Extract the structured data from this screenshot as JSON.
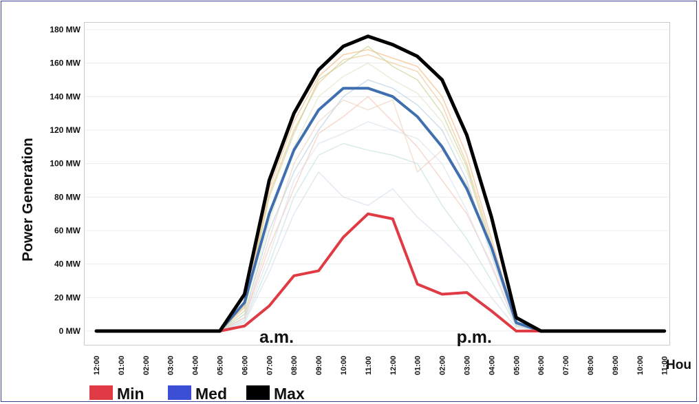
{
  "chart_data": {
    "type": "line",
    "title": "",
    "ylabel": "Power Generation",
    "xlabel": "Hou",
    "ylim": [
      0,
      180
    ],
    "y_ticks": [
      {
        "value": 0,
        "label": "0 MW"
      },
      {
        "value": 20,
        "label": "20 MW"
      },
      {
        "value": 40,
        "label": "40 MW"
      },
      {
        "value": 60,
        "label": "60 MW"
      },
      {
        "value": 80,
        "label": "80 MW"
      },
      {
        "value": 100,
        "label": "100 MW"
      },
      {
        "value": 120,
        "label": "120 MW"
      },
      {
        "value": 140,
        "label": "140 MW"
      },
      {
        "value": 160,
        "label": "160 MW"
      },
      {
        "value": 180,
        "label": "180 MW"
      }
    ],
    "categories": [
      "12:00",
      "01:00",
      "02:00",
      "03:00",
      "04:00",
      "05:00",
      "06:00",
      "07:00",
      "08:00",
      "09:00",
      "10:00",
      "11:00",
      "12:00",
      "01:00",
      "02:00",
      "03:00",
      "04:00",
      "05:00",
      "06:00",
      "07:00",
      "08:00",
      "09:00",
      "10:00",
      "11:00"
    ],
    "period_labels": [
      {
        "text": "a.m.",
        "at": 7.3
      },
      {
        "text": "p.m.",
        "at": 15.3
      }
    ],
    "grid": true,
    "legend_position": "bottom-left",
    "series": [
      {
        "name": "Min",
        "color": "#e03a45",
        "width": 4,
        "values": [
          0,
          0,
          0,
          0,
          0,
          0,
          3,
          15,
          33,
          36,
          56,
          70,
          67,
          28,
          22,
          23,
          12,
          0,
          0,
          0,
          0,
          0,
          0,
          0
        ]
      },
      {
        "name": "Med",
        "color": "#3f6faf",
        "width": 4,
        "values": [
          0,
          0,
          0,
          0,
          0,
          0,
          17,
          70,
          108,
          132,
          145,
          145,
          140,
          128,
          110,
          85,
          50,
          5,
          0,
          0,
          0,
          0,
          0,
          0
        ]
      },
      {
        "name": "Max",
        "color": "#000000",
        "width": 5,
        "values": [
          0,
          0,
          0,
          0,
          0,
          0,
          22,
          90,
          130,
          156,
          170,
          176,
          171,
          164,
          150,
          117,
          68,
          8,
          0,
          0,
          0,
          0,
          0,
          0
        ]
      }
    ],
    "background_traces": [
      {
        "color": "#f0a560",
        "values": [
          0,
          0,
          0,
          0,
          0,
          0,
          15,
          85,
          125,
          152,
          165,
          168,
          163,
          158,
          140,
          105,
          55,
          5,
          0,
          0,
          0,
          0,
          0,
          0
        ]
      },
      {
        "color": "#e8b878",
        "values": [
          0,
          0,
          0,
          0,
          0,
          0,
          14,
          82,
          120,
          148,
          162,
          165,
          160,
          155,
          135,
          100,
          52,
          5,
          0,
          0,
          0,
          0,
          0,
          0
        ]
      },
      {
        "color": "#b8c97a",
        "values": [
          0,
          0,
          0,
          0,
          0,
          0,
          12,
          80,
          118,
          150,
          160,
          170,
          158,
          150,
          130,
          98,
          48,
          4,
          0,
          0,
          0,
          0,
          0,
          0
        ]
      },
      {
        "color": "#a8c4d8",
        "values": [
          0,
          0,
          0,
          0,
          0,
          0,
          10,
          60,
          95,
          120,
          140,
          150,
          145,
          135,
          120,
          90,
          45,
          4,
          0,
          0,
          0,
          0,
          0,
          0
        ]
      },
      {
        "color": "#f2b8a8",
        "values": [
          0,
          0,
          0,
          0,
          0,
          0,
          8,
          50,
          85,
          118,
          128,
          140,
          125,
          110,
          90,
          70,
          40,
          3,
          0,
          0,
          0,
          0,
          0,
          0
        ]
      },
      {
        "color": "#b8d8d8",
        "values": [
          0,
          0,
          0,
          0,
          0,
          0,
          6,
          40,
          80,
          105,
          112,
          108,
          105,
          100,
          75,
          55,
          30,
          3,
          0,
          0,
          0,
          0,
          0,
          0
        ]
      },
      {
        "color": "#c8d8e8",
        "values": [
          0,
          0,
          0,
          0,
          0,
          0,
          5,
          35,
          70,
          95,
          80,
          75,
          85,
          68,
          55,
          40,
          20,
          2,
          0,
          0,
          0,
          0,
          0,
          0
        ]
      },
      {
        "color": "#e8c8b0",
        "values": [
          0,
          0,
          0,
          0,
          0,
          0,
          8,
          55,
          100,
          125,
          138,
          132,
          138,
          95,
          108,
          88,
          50,
          4,
          0,
          0,
          0,
          0,
          0,
          0
        ]
      },
      {
        "color": "#d8e0b8",
        "values": [
          0,
          0,
          0,
          0,
          0,
          0,
          10,
          65,
          110,
          140,
          152,
          160,
          150,
          142,
          125,
          95,
          52,
          4,
          0,
          0,
          0,
          0,
          0,
          0
        ]
      },
      {
        "color": "#d0dce8",
        "values": [
          0,
          0,
          0,
          0,
          0,
          0,
          7,
          45,
          90,
          112,
          118,
          125,
          120,
          115,
          100,
          72,
          38,
          3,
          0,
          0,
          0,
          0,
          0,
          0
        ]
      }
    ]
  }
}
